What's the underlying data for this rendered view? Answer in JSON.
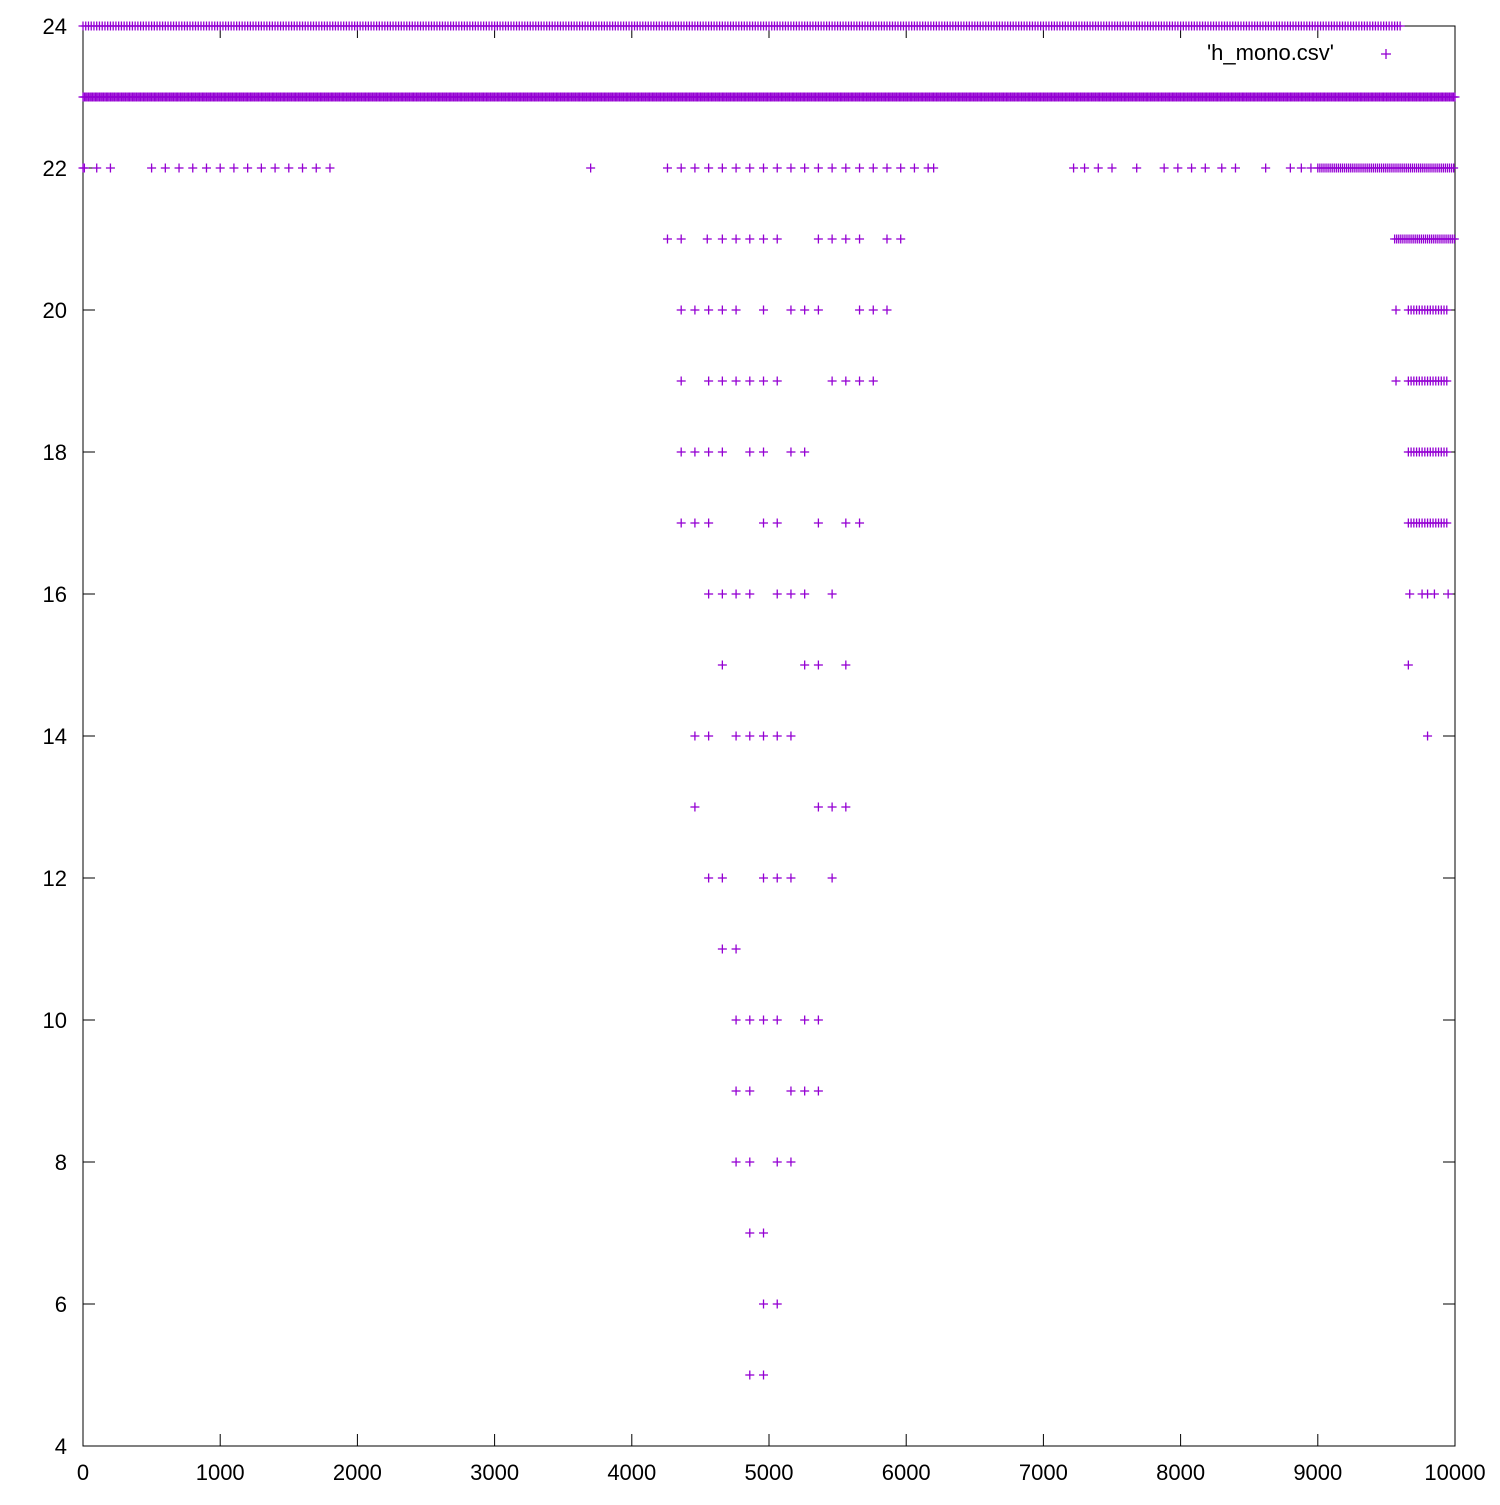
{
  "chart_data": {
    "type": "scatter",
    "title": "",
    "xlabel": "",
    "ylabel": "",
    "xlim": [
      0,
      10000
    ],
    "ylim": [
      4,
      24
    ],
    "x_ticks": [
      0,
      1000,
      2000,
      3000,
      4000,
      5000,
      6000,
      7000,
      8000,
      9000,
      10000
    ],
    "y_ticks": [
      4,
      6,
      8,
      10,
      12,
      14,
      16,
      18,
      20,
      22,
      24
    ],
    "grid": false,
    "legend": "top-right",
    "marker": "plus",
    "color": "#9400d3",
    "series": [
      {
        "name": "'h_mono.csv'",
        "dense_ranges": [
          {
            "y": 24,
            "x_from": 0,
            "x_to": 9600,
            "step": 20
          },
          {
            "y": 23,
            "x_from": 0,
            "x_to": 10000,
            "step": 10
          },
          {
            "y": 22,
            "x_from": 9000,
            "x_to": 10000,
            "step": 15
          },
          {
            "y": 21,
            "x_from": 9560,
            "x_to": 10000,
            "step": 15
          },
          {
            "y": 20,
            "x_from": 9660,
            "x_to": 9950,
            "step": 20
          },
          {
            "y": 19,
            "x_from": 9660,
            "x_to": 9950,
            "step": 20
          },
          {
            "y": 18,
            "x_from": 9660,
            "x_to": 9950,
            "step": 20
          },
          {
            "y": 17,
            "x_from": 9660,
            "x_to": 9950,
            "step": 20
          }
        ],
        "points": [
          {
            "y": 22,
            "x": [
              0,
              10,
              100,
              200,
              500,
              600,
              700,
              800,
              900,
              1000,
              1100,
              1200,
              1300,
              1400,
              1500,
              1600,
              1700,
              1800,
              3700,
              4260,
              4360,
              4460,
              4560,
              4660,
              4760,
              4860,
              4960,
              5060,
              5160,
              5260,
              5360,
              5460,
              5560,
              5660,
              5760,
              5860,
              5960,
              6060,
              6160,
              6200,
              7220,
              7300,
              7400,
              7500,
              7680,
              7880,
              7980,
              8080,
              8180,
              8300,
              8400,
              8620,
              8800,
              8880,
              8950
            ]
          },
          {
            "y": 21,
            "x": [
              4260,
              4360,
              4550,
              4660,
              4760,
              4860,
              4960,
              5060,
              5360,
              5460,
              5560,
              5660,
              5860,
              5960
            ]
          },
          {
            "y": 20,
            "x": [
              4360,
              4460,
              4560,
              4660,
              4760,
              4960,
              5160,
              5260,
              5360,
              5660,
              5760,
              5860,
              9570
            ]
          },
          {
            "y": 19,
            "x": [
              4360,
              4560,
              4660,
              4760,
              4860,
              4960,
              5060,
              5460,
              5560,
              5660,
              5760,
              9570
            ]
          },
          {
            "y": 18,
            "x": [
              4360,
              4460,
              4560,
              4660,
              4860,
              4960,
              5160,
              5260
            ]
          },
          {
            "y": 17,
            "x": [
              4360,
              4460,
              4560,
              4960,
              5060,
              5360,
              5560,
              5660
            ]
          },
          {
            "y": 16,
            "x": [
              4560,
              4660,
              4760,
              4860,
              5060,
              5160,
              5260,
              5460,
              9670,
              9760,
              9800,
              9850,
              9950
            ]
          },
          {
            "y": 15,
            "x": [
              4660,
              5260,
              5360,
              5560,
              9660
            ]
          },
          {
            "y": 14,
            "x": [
              4460,
              4560,
              4760,
              4860,
              4960,
              5060,
              5160,
              9800
            ]
          },
          {
            "y": 13,
            "x": [
              4460,
              5360,
              5460,
              5560
            ]
          },
          {
            "y": 12,
            "x": [
              4560,
              4660,
              4960,
              5060,
              5160,
              5460
            ]
          },
          {
            "y": 11,
            "x": [
              4660,
              4760
            ]
          },
          {
            "y": 10,
            "x": [
              4760,
              4860,
              4960,
              5060,
              5260,
              5360
            ]
          },
          {
            "y": 9,
            "x": [
              4760,
              4860,
              5160,
              5260,
              5360
            ]
          },
          {
            "y": 8,
            "x": [
              4760,
              4860,
              5060,
              5160
            ]
          },
          {
            "y": 7,
            "x": [
              4860,
              4960
            ]
          },
          {
            "y": 6,
            "x": [
              4960,
              5060
            ]
          },
          {
            "y": 5,
            "x": [
              4860,
              4960
            ]
          }
        ]
      }
    ]
  }
}
